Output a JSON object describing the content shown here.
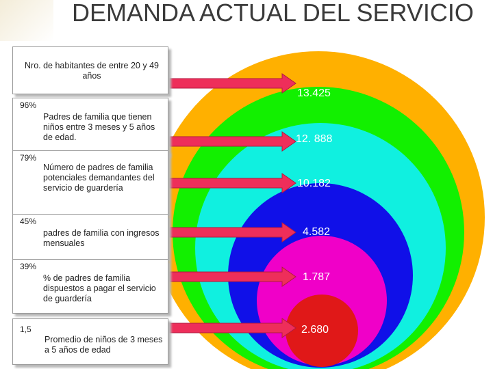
{
  "title": "DEMANDA ACTUAL DEL SERVICIO",
  "colors": {
    "orange": "#ffb000",
    "green": "#12f000",
    "cyan": "#10f0e0",
    "blue": "#1010e8",
    "magenta": "#f000c8",
    "red": "#e01818",
    "arrow": "#ee2e5a"
  },
  "rows": [
    {
      "pct": "",
      "label": "Nro. de habitantes de entre 20 y 49 años",
      "value": "13.425"
    },
    {
      "pct": "96%",
      "label": "Padres de familia que tienen niños entre 3 meses y 5 años de edad.",
      "value": "12. 888"
    },
    {
      "pct": "79%",
      "label": "Número de padres de familia potenciales demandantes del servicio de guardería",
      "value": "10.182"
    },
    {
      "pct": "45%",
      "label": "padres de familia con ingresos mensuales",
      "value": "4.582"
    },
    {
      "pct": "39%",
      "label": "% de padres de familia dispuestos a pagar el servicio de guardería",
      "value": "1.787"
    },
    {
      "pct": "1,5",
      "label": "Promedio de niños de 3 meses a 5 años de edad",
      "value": "2.680"
    }
  ]
}
